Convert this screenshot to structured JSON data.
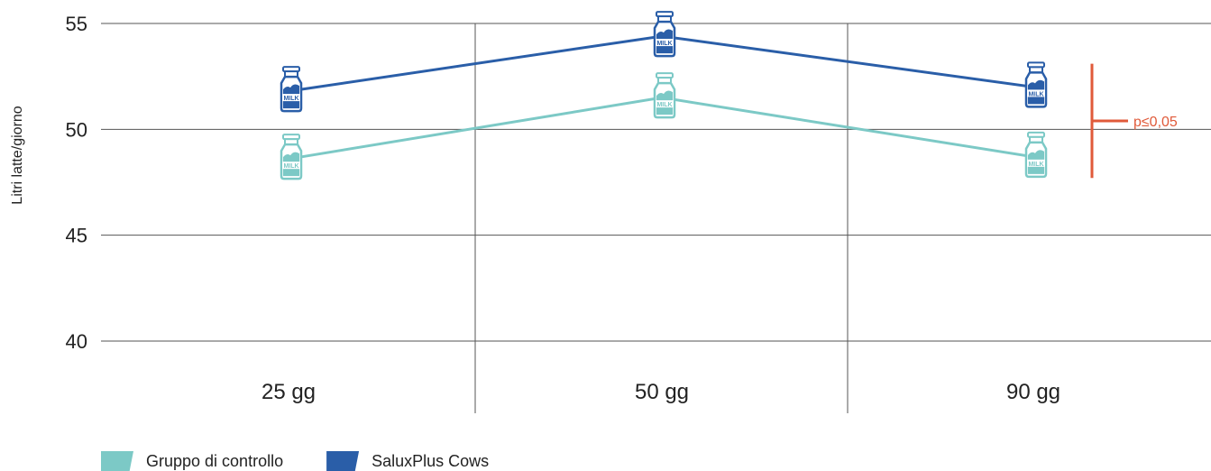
{
  "chart_data": {
    "type": "line",
    "categories": [
      "25 gg",
      "50 gg",
      "90 gg"
    ],
    "series": [
      {
        "name": "Gruppo di controllo",
        "color": "#7cc9c6",
        "values": [
          48.6,
          51.5,
          48.7
        ]
      },
      {
        "name": "SaluxPlus Cows",
        "color": "#2a5ea8",
        "values": [
          51.8,
          54.4,
          52.0
        ]
      }
    ],
    "ylabel": "Litri latte/giorno",
    "xlabel": "",
    "ylim": [
      40,
      55
    ],
    "yticks": [
      40,
      45,
      50,
      55
    ],
    "yticks_text": [
      "40",
      "45",
      "50",
      "55"
    ],
    "grid": true,
    "marker_icon": "milk-bottle-icon",
    "marker_text": "MILK",
    "significance": {
      "label": "p≤0,05",
      "color": "#e05a3a",
      "range": [
        47.7,
        53.1
      ]
    },
    "legend_position": "bottom-left"
  }
}
